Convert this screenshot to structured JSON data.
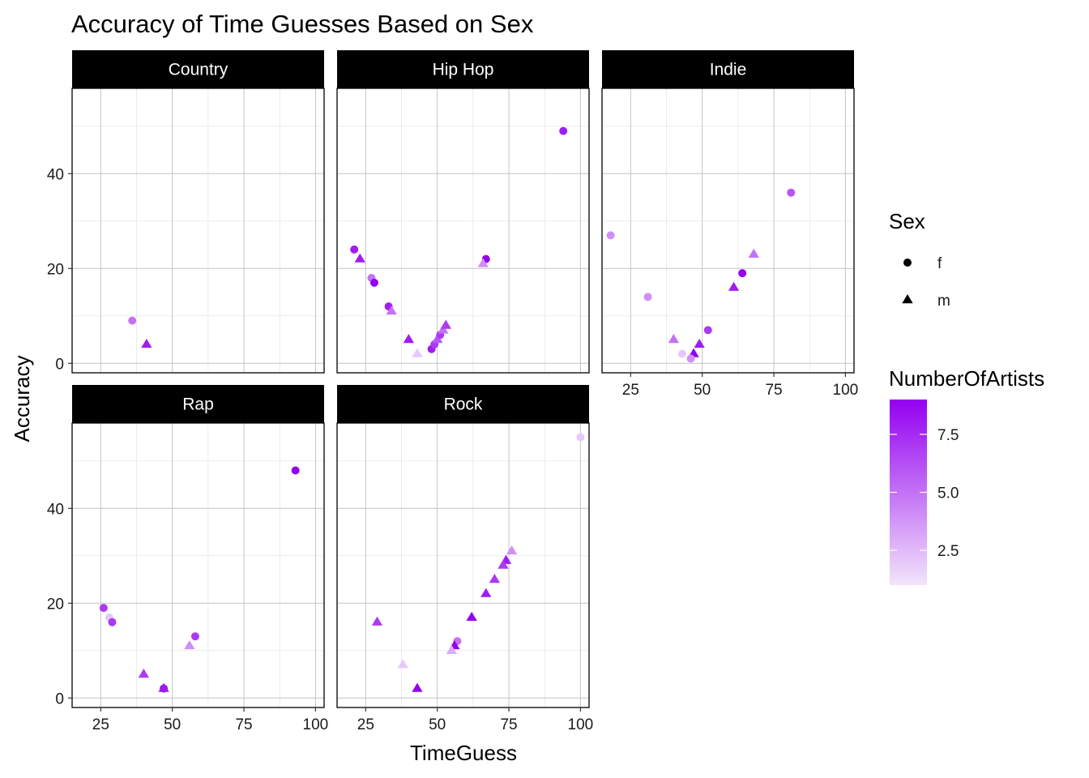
{
  "chart_data": {
    "type": "scatter",
    "title": "Accuracy of Time Guesses Based on Sex",
    "xlabel": "TimeGuess",
    "ylabel": "Accuracy",
    "xlim": [
      15,
      103
    ],
    "ylim": [
      -2,
      58
    ],
    "x_ticks": [
      25,
      50,
      75,
      100
    ],
    "y_ticks": [
      0,
      20,
      40
    ],
    "grid": true,
    "legend_position": "right",
    "sex_legend": {
      "title": "Sex",
      "levels": [
        "f",
        "m"
      ],
      "shapes": [
        "circle",
        "triangle"
      ]
    },
    "color_legend": {
      "title": "NumberOfArtists",
      "range": [
        1,
        9
      ],
      "ticks": [
        2.5,
        5.0,
        7.5
      ],
      "tick_labels": [
        "2.5",
        "5.0",
        "7.5"
      ],
      "low_color": "#f2e4fb",
      "high_color": "#9400f0"
    },
    "facets": [
      {
        "name": "Country",
        "points": [
          {
            "x": 36,
            "y": 9,
            "sex": "f",
            "n": 5
          },
          {
            "x": 41,
            "y": 4,
            "sex": "m",
            "n": 8
          }
        ]
      },
      {
        "name": "Hip Hop",
        "points": [
          {
            "x": 94,
            "y": 49,
            "sex": "f",
            "n": 8
          },
          {
            "x": 21,
            "y": 24,
            "sex": "f",
            "n": 8
          },
          {
            "x": 23,
            "y": 22,
            "sex": "m",
            "n": 8
          },
          {
            "x": 67,
            "y": 22,
            "sex": "f",
            "n": 9
          },
          {
            "x": 66,
            "y": 21,
            "sex": "m",
            "n": 4
          },
          {
            "x": 27,
            "y": 18,
            "sex": "f",
            "n": 5
          },
          {
            "x": 28,
            "y": 17,
            "sex": "f",
            "n": 9
          },
          {
            "x": 33,
            "y": 12,
            "sex": "f",
            "n": 8
          },
          {
            "x": 34,
            "y": 11,
            "sex": "m",
            "n": 5
          },
          {
            "x": 40,
            "y": 5,
            "sex": "m",
            "n": 8
          },
          {
            "x": 43,
            "y": 2,
            "sex": "m",
            "n": 2
          },
          {
            "x": 48,
            "y": 3,
            "sex": "f",
            "n": 8
          },
          {
            "x": 49,
            "y": 4,
            "sex": "f",
            "n": 7
          },
          {
            "x": 50,
            "y": 5,
            "sex": "m",
            "n": 6
          },
          {
            "x": 51,
            "y": 6,
            "sex": "f",
            "n": 7
          },
          {
            "x": 52,
            "y": 7,
            "sex": "m",
            "n": 5
          },
          {
            "x": 53,
            "y": 8,
            "sex": "m",
            "n": 7
          }
        ]
      },
      {
        "name": "Indie",
        "points": [
          {
            "x": 81,
            "y": 36,
            "sex": "f",
            "n": 6
          },
          {
            "x": 18,
            "y": 27,
            "sex": "f",
            "n": 4
          },
          {
            "x": 68,
            "y": 23,
            "sex": "m",
            "n": 5
          },
          {
            "x": 64,
            "y": 19,
            "sex": "f",
            "n": 9
          },
          {
            "x": 61,
            "y": 16,
            "sex": "m",
            "n": 8
          },
          {
            "x": 31,
            "y": 14,
            "sex": "f",
            "n": 4
          },
          {
            "x": 52,
            "y": 7,
            "sex": "f",
            "n": 7
          },
          {
            "x": 40,
            "y": 5,
            "sex": "m",
            "n": 5
          },
          {
            "x": 49,
            "y": 4,
            "sex": "m",
            "n": 8
          },
          {
            "x": 43,
            "y": 2,
            "sex": "f",
            "n": 2
          },
          {
            "x": 47,
            "y": 2,
            "sex": "m",
            "n": 9
          },
          {
            "x": 46,
            "y": 1,
            "sex": "f",
            "n": 4
          }
        ]
      },
      {
        "name": "Rap",
        "points": [
          {
            "x": 93,
            "y": 48,
            "sex": "f",
            "n": 9
          },
          {
            "x": 26,
            "y": 19,
            "sex": "f",
            "n": 7
          },
          {
            "x": 28,
            "y": 17,
            "sex": "f",
            "n": 2
          },
          {
            "x": 29,
            "y": 16,
            "sex": "f",
            "n": 7
          },
          {
            "x": 58,
            "y": 13,
            "sex": "f",
            "n": 7
          },
          {
            "x": 56,
            "y": 11,
            "sex": "m",
            "n": 4
          },
          {
            "x": 40,
            "y": 5,
            "sex": "m",
            "n": 7
          },
          {
            "x": 47,
            "y": 2,
            "sex": "f",
            "n": 9
          },
          {
            "x": 47,
            "y": 2,
            "sex": "m",
            "n": 8
          }
        ]
      },
      {
        "name": "Rock",
        "points": [
          {
            "x": 100,
            "y": 55,
            "sex": "f",
            "n": 2
          },
          {
            "x": 76,
            "y": 31,
            "sex": "m",
            "n": 4
          },
          {
            "x": 74,
            "y": 29,
            "sex": "m",
            "n": 8
          },
          {
            "x": 73,
            "y": 28,
            "sex": "m",
            "n": 7
          },
          {
            "x": 70,
            "y": 25,
            "sex": "m",
            "n": 7
          },
          {
            "x": 67,
            "y": 22,
            "sex": "m",
            "n": 8
          },
          {
            "x": 62,
            "y": 17,
            "sex": "m",
            "n": 9
          },
          {
            "x": 29,
            "y": 16,
            "sex": "m",
            "n": 7
          },
          {
            "x": 57,
            "y": 12,
            "sex": "f",
            "n": 5
          },
          {
            "x": 56,
            "y": 11,
            "sex": "m",
            "n": 9
          },
          {
            "x": 55,
            "y": 10,
            "sex": "m",
            "n": 3
          },
          {
            "x": 38,
            "y": 7,
            "sex": "m",
            "n": 2
          },
          {
            "x": 43,
            "y": 2,
            "sex": "m",
            "n": 9
          }
        ]
      }
    ]
  }
}
